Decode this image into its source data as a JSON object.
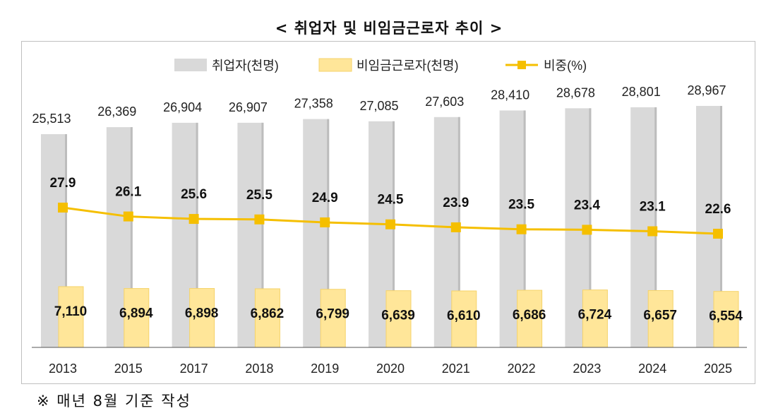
{
  "title": "< 취업자 및 비임금근로자 추이 >",
  "note": "※ 매년 8월 기준 작성",
  "colors": {
    "employed": "#d9d9d9",
    "nonwage": "#ffe699",
    "nonwage_border": "#f5d36a",
    "ratio": "#f5bf00"
  },
  "chart_data": {
    "type": "bar",
    "title": "< 취업자 및 비임금근로자 추이 >",
    "categories": [
      "2013",
      "2015",
      "2017",
      "2018",
      "2019",
      "2020",
      "2021",
      "2022",
      "2023",
      "2024",
      "2025"
    ],
    "series": [
      {
        "name": "취업자(천명)",
        "type": "bar",
        "values": [
          25513,
          26369,
          26904,
          26907,
          27358,
          27085,
          27603,
          28410,
          28678,
          28801,
          28967
        ],
        "labels": [
          "25,513",
          "26,369",
          "26,904",
          "26,907",
          "27,358",
          "27,085",
          "27,603",
          "28,410",
          "28,678",
          "28,801",
          "28,967"
        ]
      },
      {
        "name": "비임금근로자(천명)",
        "type": "bar",
        "values": [
          7110,
          6894,
          6898,
          6862,
          6799,
          6639,
          6610,
          6686,
          6724,
          6657,
          6554
        ],
        "labels": [
          "7,110",
          "6,894",
          "6,898",
          "6,862",
          "6,799",
          "6,639",
          "6,610",
          "6,686",
          "6,724",
          "6,657",
          "6,554"
        ]
      },
      {
        "name": "비중(%)",
        "type": "line",
        "values": [
          27.9,
          26.1,
          25.6,
          25.5,
          24.9,
          24.5,
          23.9,
          23.5,
          23.4,
          23.1,
          22.6
        ],
        "labels": [
          "27.9",
          "26.1",
          "25.6",
          "25.5",
          "24.9",
          "24.5",
          "23.9",
          "23.5",
          "23.4",
          "23.1",
          "22.6"
        ]
      }
    ],
    "legend": "top",
    "grid": false
  }
}
